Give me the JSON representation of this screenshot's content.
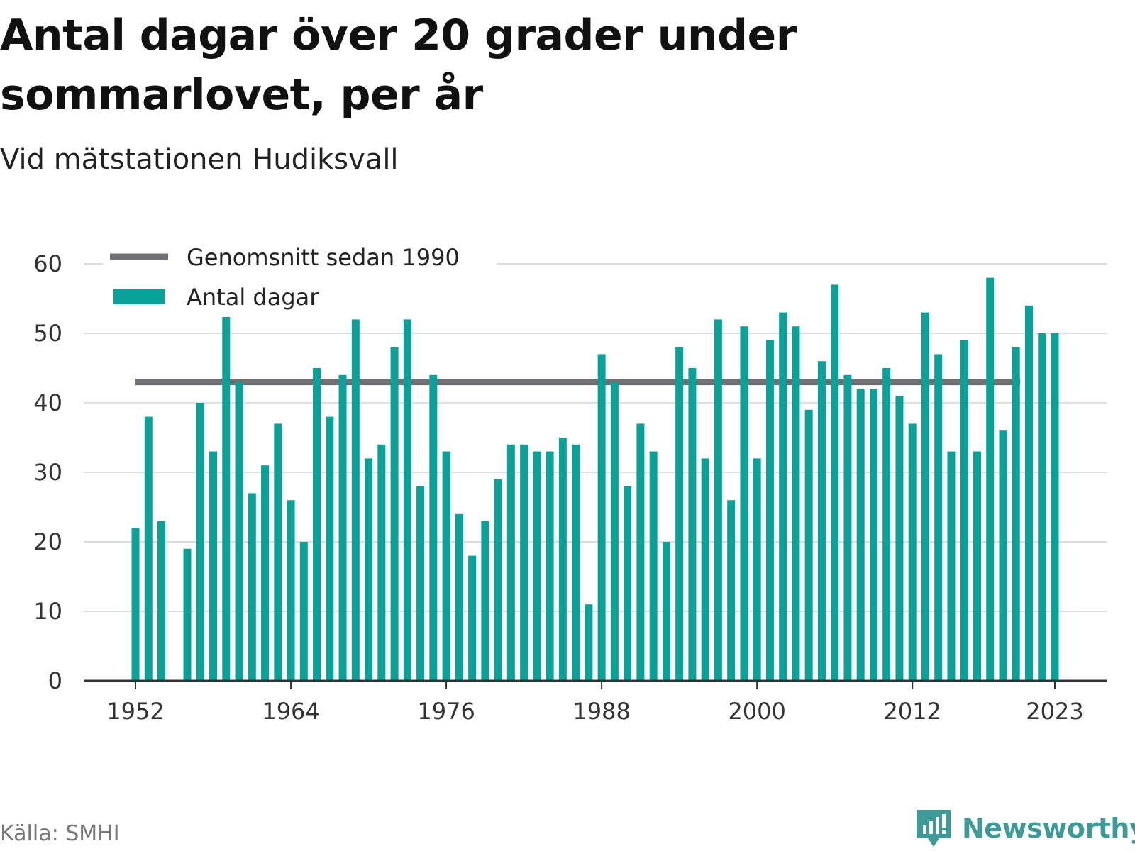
{
  "header": {
    "title": "Antal dagar över 20 grader under sommarlovet, per år",
    "subtitle": "Vid mätstationen Hudiksvall"
  },
  "footer": {
    "source": "Källa: SMHI",
    "brand": "Newsworthy"
  },
  "colors": {
    "bars": "#0aa198",
    "average_line": "#707074",
    "grid": "#dddddd",
    "axis": "#333333",
    "brand": "#3d9a96"
  },
  "chart_data": {
    "type": "bar",
    "title": "Antal dagar över 20 grader under sommarlovet, per år",
    "subtitle": "Vid mätstationen Hudiksvall",
    "xlabel": "",
    "ylabel": "",
    "ylim": [
      0,
      60
    ],
    "yticks": [
      0,
      10,
      20,
      30,
      40,
      50,
      60
    ],
    "xticks": [
      1952,
      1964,
      1976,
      1988,
      2000,
      2012,
      2023
    ],
    "xlim": [
      1948,
      2027
    ],
    "grid": true,
    "legend_position": "top-left",
    "series": [
      {
        "name": "Antal dagar",
        "kind": "bar",
        "x": [
          1952,
          1953,
          1954,
          1956,
          1957,
          1958,
          1959,
          1960,
          1961,
          1962,
          1963,
          1964,
          1965,
          1966,
          1967,
          1968,
          1969,
          1970,
          1971,
          1972,
          1973,
          1974,
          1975,
          1976,
          1977,
          1978,
          1979,
          1980,
          1981,
          1982,
          1983,
          1984,
          1985,
          1986,
          1987,
          1988,
          1989,
          1990,
          1991,
          1992,
          1993,
          1994,
          1995,
          1996,
          1997,
          1998,
          1999,
          2000,
          2001,
          2002,
          2003,
          2004,
          2005,
          2006,
          2007,
          2008,
          2009,
          2010,
          2011,
          2012,
          2013,
          2014,
          2015,
          2016,
          2017,
          2018,
          2019,
          2020,
          2021,
          2022,
          2023
        ],
        "values": [
          22,
          38,
          23,
          19,
          40,
          33,
          55,
          43,
          27,
          31,
          37,
          26,
          20,
          45,
          38,
          44,
          52,
          32,
          34,
          48,
          52,
          28,
          44,
          33,
          24,
          18,
          23,
          29,
          34,
          34,
          33,
          33,
          35,
          34,
          11,
          47,
          43,
          28,
          37,
          33,
          20,
          48,
          45,
          32,
          52,
          26,
          51,
          32,
          49,
          53,
          51,
          39,
          46,
          57,
          44,
          42,
          42,
          45,
          41,
          37,
          53,
          47,
          33,
          49,
          33,
          58,
          36,
          48,
          54,
          50,
          50
        ]
      },
      {
        "name": "Genomsnitt sedan 1990",
        "kind": "line",
        "x": [
          1952,
          2020
        ],
        "values": [
          43,
          43
        ]
      }
    ]
  }
}
